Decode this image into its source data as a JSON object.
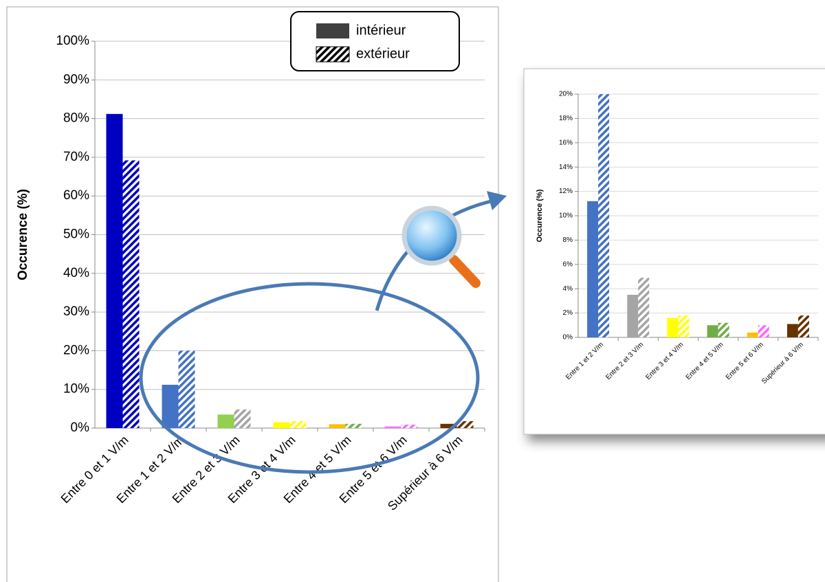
{
  "chart_data": [
    {
      "type": "bar",
      "ylabel": "Occurence (%)",
      "categories": [
        "Entre 0 et 1 V/m",
        "Entre 1 et 2 V/m",
        "Entre 2 et 3 V/m",
        "Entre 3 et 4 V/m",
        "Entre 4 et 5 V/m",
        "Entre 5 et 6 V/m",
        "Supérieur à 6 V/m"
      ],
      "series": [
        {
          "name": "intérieur",
          "color": "#404040",
          "pattern": "solid",
          "colors": [
            "#0000c0",
            "#4472c4",
            "#92d050",
            "#ffff00",
            "#ffc000",
            "#ff66ff",
            "#663300"
          ],
          "values": [
            81.2,
            11.2,
            3.5,
            1.5,
            1.0,
            0.4,
            1.1
          ]
        },
        {
          "name": "extérieur",
          "color": "#000000",
          "pattern": "hatch",
          "colors": [
            "#0000c0",
            "#4472c4",
            "#a5a5a5",
            "#ffff00",
            "#70ad47",
            "#ff66ff",
            "#663300"
          ],
          "values": [
            69.2,
            20.0,
            4.8,
            1.8,
            1.1,
            0.9,
            1.8
          ]
        }
      ],
      "ylim": [
        0,
        100
      ],
      "yticks": [
        {
          "value": 0,
          "label": "0%"
        },
        {
          "value": 10,
          "label": "10%"
        },
        {
          "value": 20,
          "label": "20%"
        },
        {
          "value": 30,
          "label": "30%"
        },
        {
          "value": 40,
          "label": "40%"
        },
        {
          "value": 50,
          "label": "50%"
        },
        {
          "value": 60,
          "label": "60%"
        },
        {
          "value": 70,
          "label": "70%"
        },
        {
          "value": 80,
          "label": "80%"
        },
        {
          "value": 90,
          "label": "90%"
        },
        {
          "value": 100,
          "label": "100%"
        }
      ],
      "grid": true,
      "legend": "upper right"
    },
    {
      "type": "bar",
      "ylabel": "Occurence (%)",
      "categories": [
        "Entre 1 et 2 V/m",
        "Entre 2 et 3 V/m",
        "Entre 3 et 4 V/m",
        "Entre 4 et 5 V/m",
        "Entre 5 et 6 V/m",
        "Supérieur à 6 V/m"
      ],
      "series": [
        {
          "pattern": "solid",
          "colors": [
            "#4472c4",
            "#a5a5a5",
            "#ffff00",
            "#70ad47",
            "#ffc000",
            "#663300"
          ],
          "values": [
            11.2,
            3.5,
            1.6,
            1.0,
            0.4,
            1.1
          ]
        },
        {
          "pattern": "hatch",
          "colors": [
            "#4472c4",
            "#a5a5a5",
            "#ffff00",
            "#70ad47",
            "#ff66ff",
            "#663300"
          ],
          "values": [
            20.0,
            4.9,
            1.8,
            1.2,
            1.0,
            1.8
          ]
        }
      ],
      "ylim": [
        0,
        20
      ],
      "yticks": [
        {
          "value": 0,
          "label": "0%"
        },
        {
          "value": 2,
          "label": "2%"
        },
        {
          "value": 4,
          "label": "4%"
        },
        {
          "value": 6,
          "label": "6%"
        },
        {
          "value": 8,
          "label": "8%"
        },
        {
          "value": 10,
          "label": "10%"
        },
        {
          "value": 12,
          "label": "12%"
        },
        {
          "value": 14,
          "label": "14%"
        },
        {
          "value": 16,
          "label": "16%"
        },
        {
          "value": 18,
          "label": "18%"
        },
        {
          "value": 20,
          "label": "20%"
        }
      ],
      "grid": true
    }
  ]
}
